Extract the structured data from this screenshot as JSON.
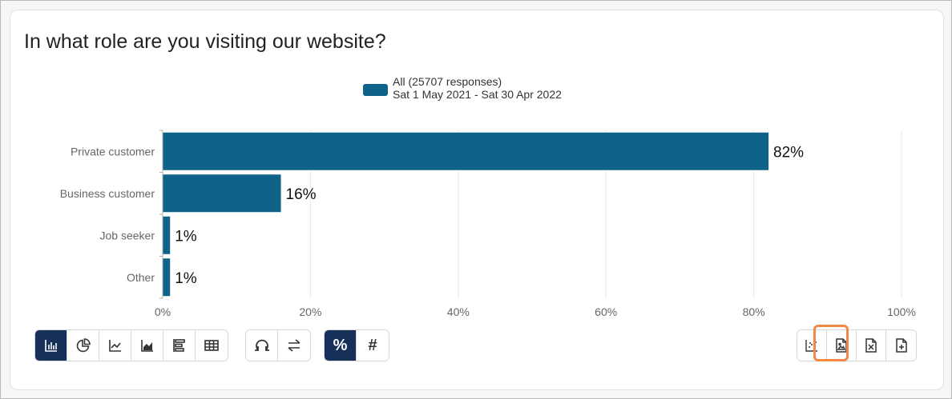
{
  "question_title": "In what role are you visiting our website?",
  "legend": {
    "line1": "All (25707 responses)",
    "line2": "Sat 1 May 2021 - Sat 30 Apr 2022",
    "color": "#0f6388"
  },
  "chart_data": {
    "type": "bar",
    "orientation": "horizontal",
    "title": "In what role are you visiting our website?",
    "categories": [
      "Private customer",
      "Business customer",
      "Job seeker",
      "Other"
    ],
    "series": [
      {
        "name": "All (25707 responses)",
        "values": [
          82,
          16,
          1,
          1
        ],
        "labels": [
          "82%",
          "16%",
          "1%",
          "1%"
        ],
        "color": "#0f6388"
      }
    ],
    "xlim": [
      0,
      100
    ],
    "x_ticks": [
      "0%",
      "20%",
      "40%",
      "60%",
      "80%",
      "100%"
    ],
    "xlabel": "",
    "ylabel": "",
    "grid": true,
    "legend_position": "top-center"
  },
  "toolbar_chart_types": {
    "icons": [
      "bar-chart-icon",
      "pie-chart-icon",
      "line-chart-icon",
      "area-chart-icon",
      "stacked-bar-icon",
      "table-icon"
    ],
    "active": "bar-chart-icon"
  },
  "toolbar_transform": {
    "icons": [
      "refresh-icon",
      "swap-icon"
    ]
  },
  "toolbar_mode": {
    "percent_label": "%",
    "count_label": "#",
    "active": "percent"
  },
  "toolbar_export": {
    "icons": [
      "scatter-export-icon",
      "image-export-icon",
      "excel-export-icon",
      "pdf-add-icon"
    ],
    "highlighted": "image-export-icon",
    "highlight_color": "#f28a45"
  }
}
